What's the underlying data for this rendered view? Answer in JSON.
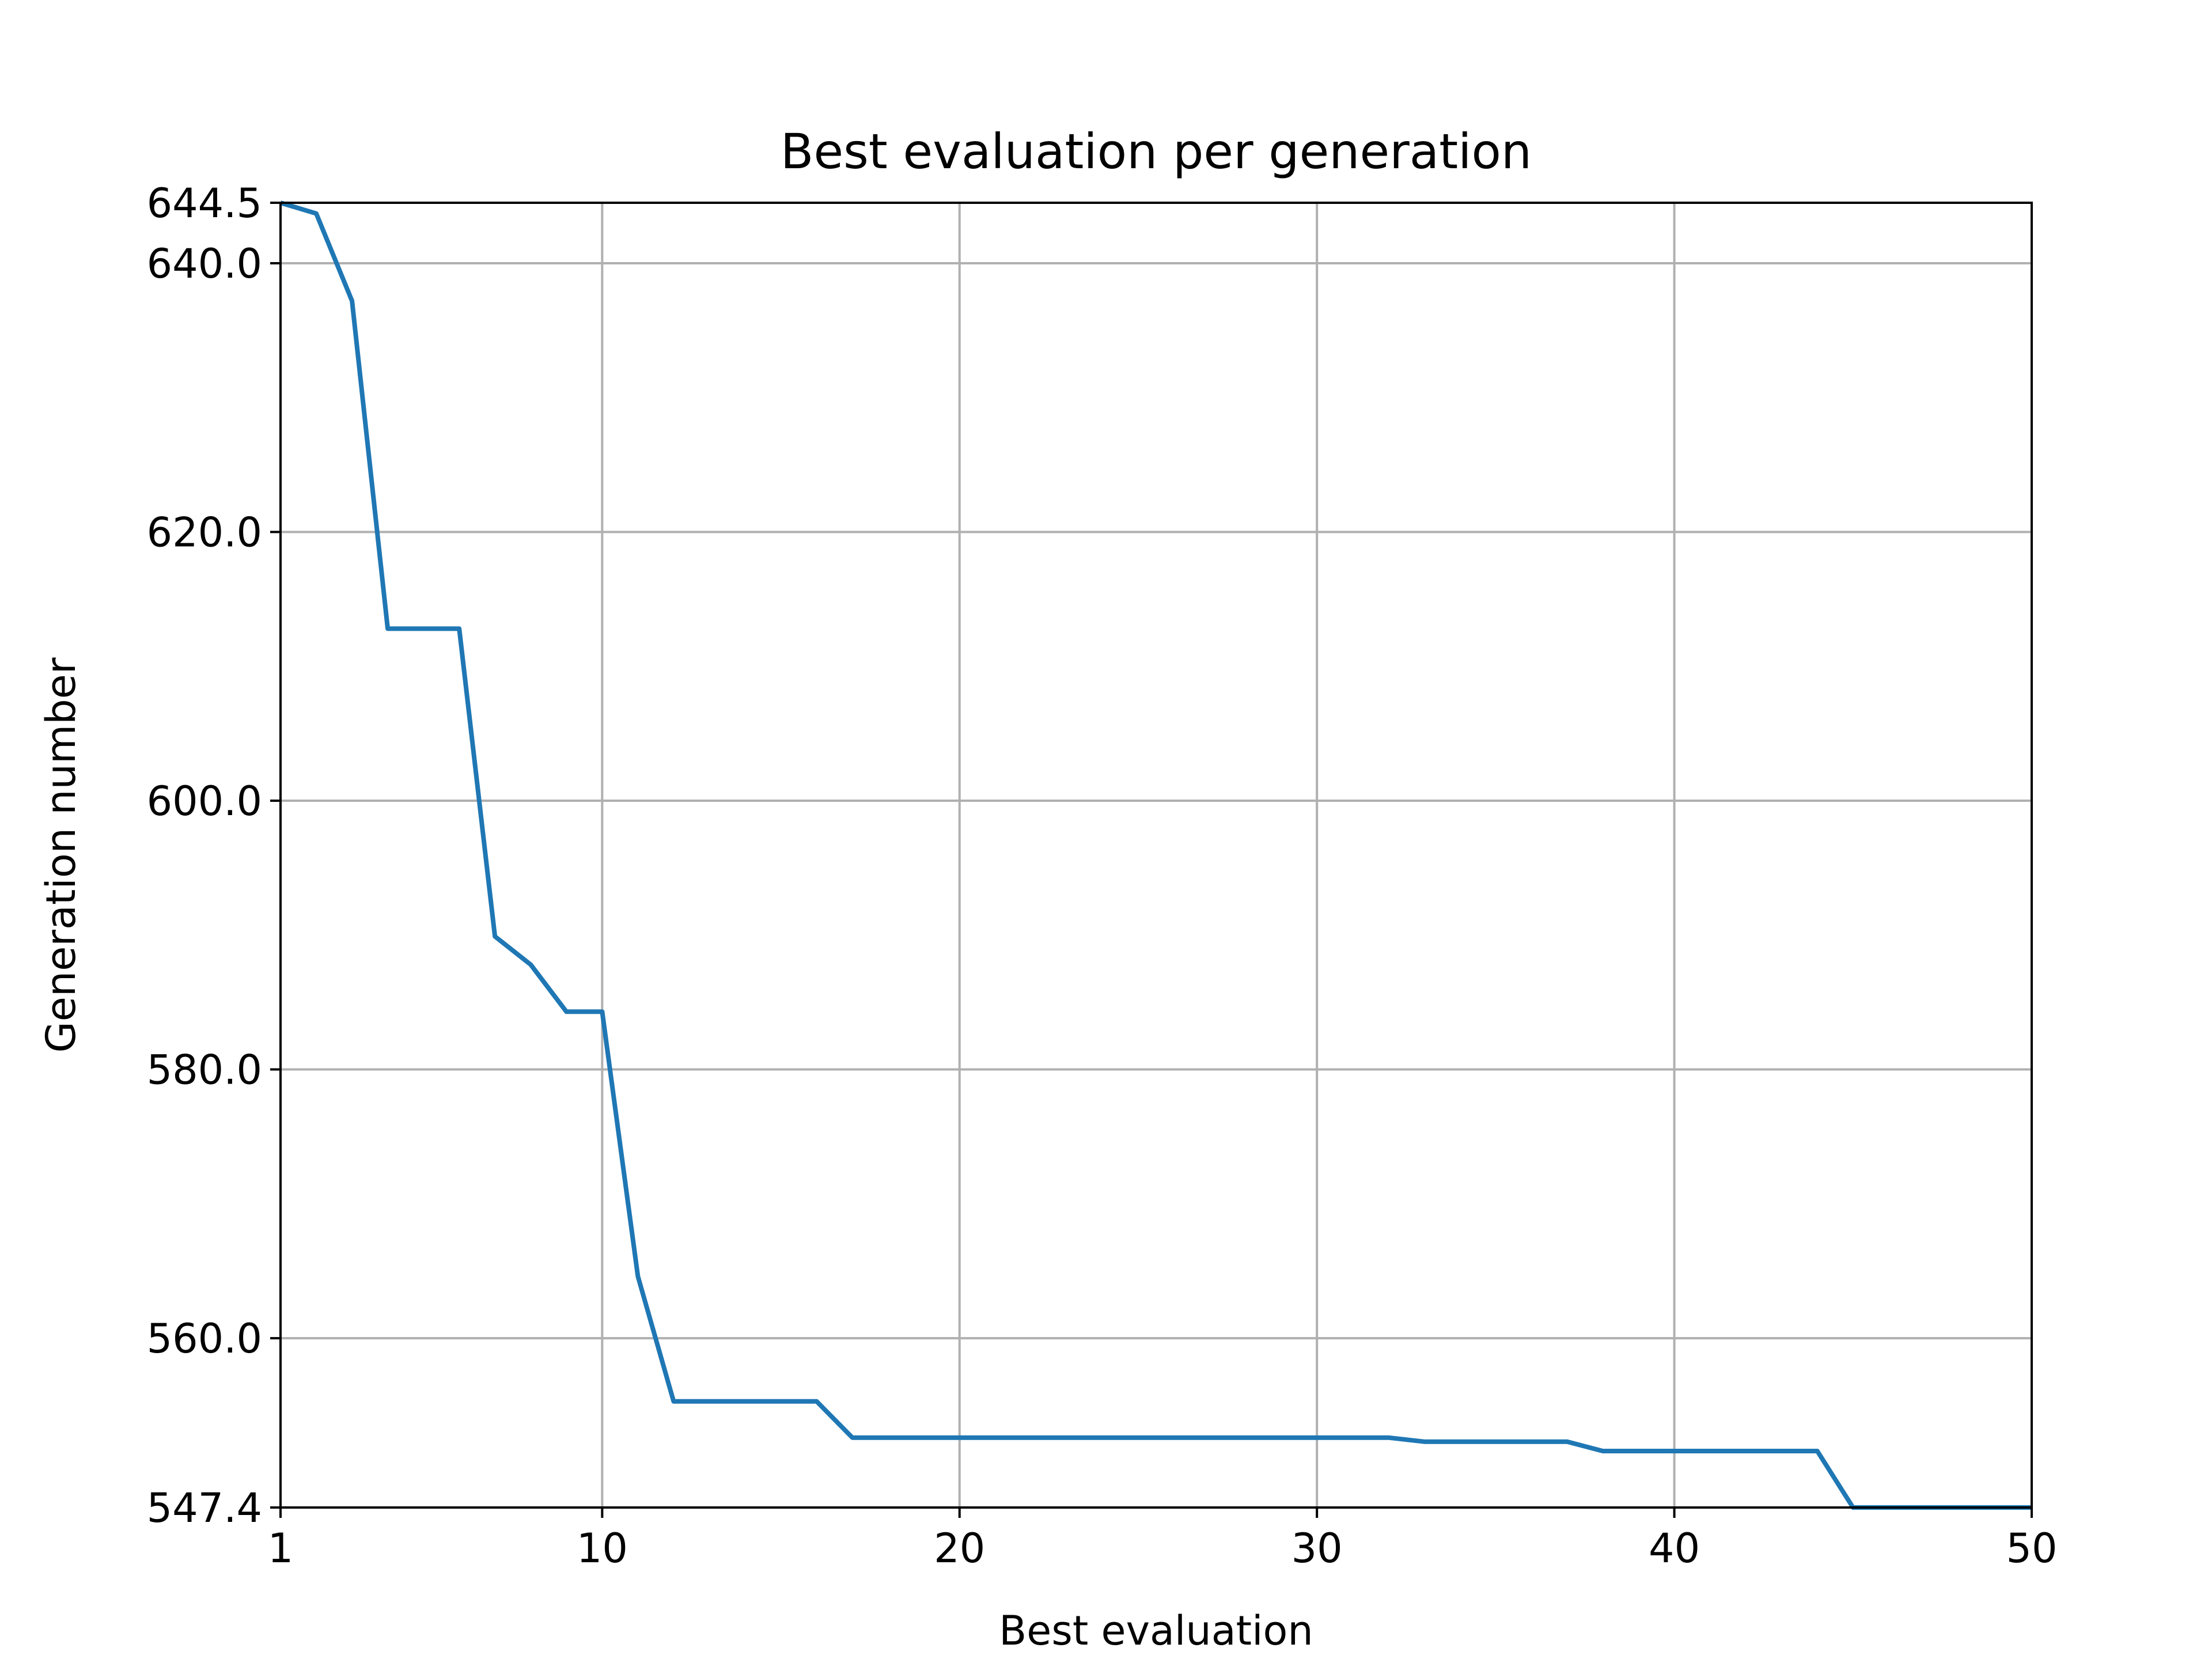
{
  "chart_data": {
    "type": "line",
    "title": "Best evaluation per generation",
    "xlabel": "Best evaluation",
    "ylabel": "Generation number",
    "xlim": [
      1,
      50
    ],
    "ylim": [
      547.4,
      644.5
    ],
    "xticks": [
      1,
      10,
      20,
      30,
      40,
      50
    ],
    "xtick_labels": [
      "1",
      "10",
      "20",
      "30",
      "40",
      "50"
    ],
    "yticks": [
      547.4,
      560.0,
      580.0,
      600.0,
      620.0,
      640.0,
      644.5
    ],
    "ytick_labels": [
      "547.4",
      "560.0",
      "580.0",
      "600.0",
      "620.0",
      "640.0",
      "644.5"
    ],
    "grid": true,
    "color": "#1f77b4",
    "series": [
      {
        "x": [
          1,
          2,
          3,
          4,
          5,
          6,
          7,
          8,
          9,
          10,
          11,
          12,
          13,
          14,
          15,
          16,
          17,
          18,
          19,
          20,
          21,
          22,
          23,
          24,
          25,
          26,
          27,
          28,
          29,
          30,
          31,
          32,
          33,
          34,
          35,
          36,
          37,
          38,
          39,
          40,
          41,
          42,
          43,
          44,
          45,
          46,
          47,
          48,
          49,
          50
        ],
        "values": [
          644.5,
          643.7,
          637.2,
          612.8,
          612.8,
          612.8,
          589.9,
          587.8,
          584.3,
          584.3,
          564.6,
          555.3,
          555.3,
          555.3,
          555.3,
          555.3,
          552.6,
          552.6,
          552.6,
          552.6,
          552.6,
          552.6,
          552.6,
          552.6,
          552.6,
          552.6,
          552.6,
          552.6,
          552.6,
          552.6,
          552.6,
          552.6,
          552.3,
          552.3,
          552.3,
          552.3,
          552.3,
          551.6,
          551.6,
          551.6,
          551.6,
          551.6,
          551.6,
          551.6,
          547.4,
          547.4,
          547.4,
          547.4,
          547.4,
          547.4
        ]
      }
    ]
  }
}
